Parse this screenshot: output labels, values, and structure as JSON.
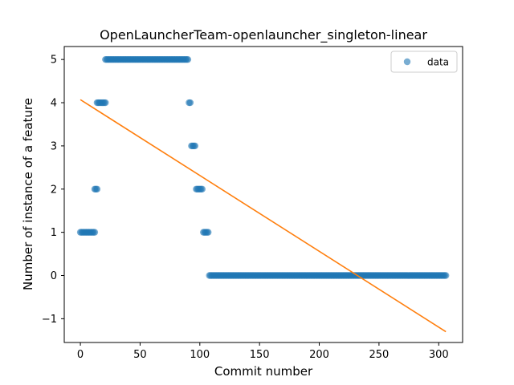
{
  "chart_data": {
    "type": "scatter",
    "title": "OpenLauncherTeam-openlauncher_singleton-linear",
    "xlabel": "Commit number",
    "ylabel": "Number of instance of a feature",
    "xlim": [
      -13.5,
      320
    ],
    "ylim": [
      -1.55,
      5.3
    ],
    "xticks": [
      0,
      50,
      100,
      150,
      200,
      250,
      300
    ],
    "yticks": [
      -1,
      0,
      1,
      2,
      3,
      4,
      5
    ],
    "grid": false,
    "legend": {
      "position": "top-right",
      "entries": [
        "data"
      ]
    },
    "colors": {
      "points": "#1f77b4",
      "fit_line": "#ff7f0e"
    },
    "series": [
      {
        "name": "data",
        "kind": "scatter",
        "segments": [
          {
            "x_start": 0,
            "x_end": 12,
            "y": 1
          },
          {
            "x_start": 12,
            "x_end": 14,
            "y": 2
          },
          {
            "x_start": 14,
            "x_end": 21,
            "y": 4
          },
          {
            "x_start": 21,
            "x_end": 90,
            "y": 5
          },
          {
            "x_start": 91,
            "x_end": 92,
            "y": 4
          },
          {
            "x_start": 93,
            "x_end": 96,
            "y": 3
          },
          {
            "x_start": 97,
            "x_end": 102,
            "y": 2
          },
          {
            "x_start": 103,
            "x_end": 107,
            "y": 1
          },
          {
            "x_start": 108,
            "x_end": 306,
            "y": 0
          }
        ]
      },
      {
        "kind": "line",
        "x": [
          0,
          306
        ],
        "y": [
          4.07,
          -1.3
        ]
      }
    ]
  }
}
